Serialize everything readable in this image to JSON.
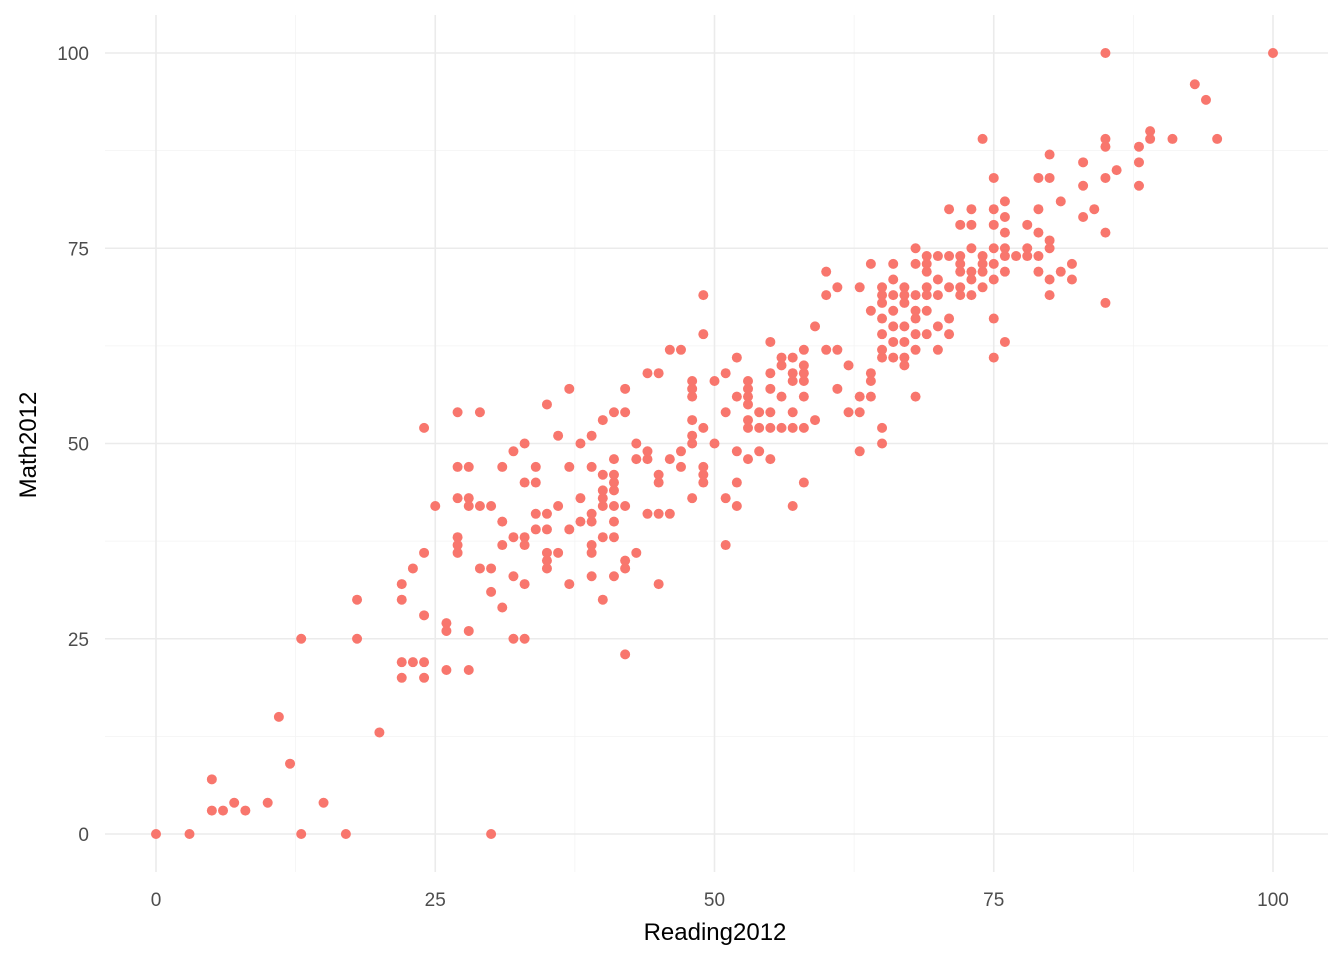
{
  "chart_data": {
    "type": "scatter",
    "title": "",
    "xlabel": "Reading2012",
    "ylabel": "Math2012",
    "xlim": [
      0,
      100
    ],
    "ylim": [
      0,
      100
    ],
    "x_ticks": [
      0,
      25,
      50,
      75,
      100
    ],
    "y_ticks": [
      0,
      25,
      50,
      75,
      100
    ],
    "x_tick_labels": [
      "0",
      "25",
      "50",
      "75",
      "100"
    ],
    "y_tick_labels": [
      "0",
      "25",
      "50",
      "75",
      "100"
    ],
    "grid": true,
    "legend": "none",
    "point_color": "#F8766D",
    "points": [
      [
        0,
        0
      ],
      [
        3,
        0
      ],
      [
        5,
        3
      ],
      [
        5,
        7
      ],
      [
        6,
        3
      ],
      [
        7,
        4
      ],
      [
        8,
        3
      ],
      [
        10,
        4
      ],
      [
        11,
        15
      ],
      [
        12,
        9
      ],
      [
        13,
        0
      ],
      [
        13,
        25
      ],
      [
        15,
        4
      ],
      [
        17,
        0
      ],
      [
        18,
        25
      ],
      [
        18,
        30
      ],
      [
        20,
        13
      ],
      [
        22,
        20
      ],
      [
        22,
        22
      ],
      [
        22,
        30
      ],
      [
        22,
        32
      ],
      [
        23,
        22
      ],
      [
        23,
        34
      ],
      [
        24,
        20
      ],
      [
        24,
        22
      ],
      [
        24,
        28
      ],
      [
        24,
        36
      ],
      [
        24,
        52
      ],
      [
        25,
        42
      ],
      [
        26,
        26
      ],
      [
        26,
        27
      ],
      [
        26,
        21
      ],
      [
        27,
        36
      ],
      [
        27,
        37
      ],
      [
        27,
        38
      ],
      [
        27,
        43
      ],
      [
        27,
        47
      ],
      [
        27,
        54
      ],
      [
        28,
        21
      ],
      [
        28,
        26
      ],
      [
        28,
        42
      ],
      [
        28,
        43
      ],
      [
        28,
        47
      ],
      [
        29,
        34
      ],
      [
        29,
        42
      ],
      [
        29,
        54
      ],
      [
        30,
        0
      ],
      [
        30,
        31
      ],
      [
        30,
        34
      ],
      [
        30,
        42
      ],
      [
        31,
        29
      ],
      [
        31,
        37
      ],
      [
        31,
        40
      ],
      [
        31,
        47
      ],
      [
        32,
        25
      ],
      [
        32,
        33
      ],
      [
        32,
        38
      ],
      [
        32,
        49
      ],
      [
        33,
        25
      ],
      [
        33,
        32
      ],
      [
        33,
        37
      ],
      [
        33,
        38
      ],
      [
        33,
        45
      ],
      [
        33,
        50
      ],
      [
        34,
        39
      ],
      [
        34,
        41
      ],
      [
        34,
        45
      ],
      [
        34,
        47
      ],
      [
        35,
        34
      ],
      [
        35,
        35
      ],
      [
        35,
        36
      ],
      [
        35,
        39
      ],
      [
        35,
        41
      ],
      [
        35,
        55
      ],
      [
        36,
        36
      ],
      [
        36,
        42
      ],
      [
        36,
        51
      ],
      [
        37,
        32
      ],
      [
        37,
        39
      ],
      [
        37,
        47
      ],
      [
        37,
        57
      ],
      [
        38,
        40
      ],
      [
        38,
        43
      ],
      [
        38,
        50
      ],
      [
        39,
        33
      ],
      [
        39,
        36
      ],
      [
        39,
        37
      ],
      [
        39,
        40
      ],
      [
        39,
        41
      ],
      [
        39,
        47
      ],
      [
        39,
        51
      ],
      [
        40,
        30
      ],
      [
        40,
        38
      ],
      [
        40,
        42
      ],
      [
        40,
        43
      ],
      [
        40,
        44
      ],
      [
        40,
        46
      ],
      [
        40,
        53
      ],
      [
        41,
        33
      ],
      [
        41,
        38
      ],
      [
        41,
        40
      ],
      [
        41,
        42
      ],
      [
        41,
        44
      ],
      [
        41,
        45
      ],
      [
        41,
        46
      ],
      [
        41,
        48
      ],
      [
        41,
        54
      ],
      [
        42,
        23
      ],
      [
        42,
        34
      ],
      [
        42,
        35
      ],
      [
        42,
        42
      ],
      [
        42,
        54
      ],
      [
        42,
        57
      ],
      [
        43,
        36
      ],
      [
        43,
        48
      ],
      [
        43,
        50
      ],
      [
        44,
        41
      ],
      [
        44,
        48
      ],
      [
        44,
        49
      ],
      [
        44,
        59
      ],
      [
        45,
        32
      ],
      [
        45,
        41
      ],
      [
        45,
        45
      ],
      [
        45,
        46
      ],
      [
        45,
        59
      ],
      [
        46,
        41
      ],
      [
        46,
        48
      ],
      [
        46,
        62
      ],
      [
        47,
        47
      ],
      [
        47,
        49
      ],
      [
        47,
        62
      ],
      [
        48,
        43
      ],
      [
        48,
        50
      ],
      [
        48,
        51
      ],
      [
        48,
        53
      ],
      [
        48,
        56
      ],
      [
        48,
        57
      ],
      [
        48,
        58
      ],
      [
        49,
        45
      ],
      [
        49,
        46
      ],
      [
        49,
        47
      ],
      [
        49,
        52
      ],
      [
        49,
        64
      ],
      [
        49,
        69
      ],
      [
        50,
        50
      ],
      [
        50,
        58
      ],
      [
        51,
        37
      ],
      [
        51,
        43
      ],
      [
        51,
        54
      ],
      [
        51,
        59
      ],
      [
        52,
        42
      ],
      [
        52,
        45
      ],
      [
        52,
        49
      ],
      [
        52,
        56
      ],
      [
        52,
        61
      ],
      [
        53,
        48
      ],
      [
        53,
        52
      ],
      [
        53,
        53
      ],
      [
        53,
        55
      ],
      [
        53,
        56
      ],
      [
        53,
        57
      ],
      [
        53,
        58
      ],
      [
        54,
        49
      ],
      [
        54,
        52
      ],
      [
        54,
        54
      ],
      [
        55,
        48
      ],
      [
        55,
        52
      ],
      [
        55,
        54
      ],
      [
        55,
        57
      ],
      [
        55,
        59
      ],
      [
        55,
        63
      ],
      [
        56,
        52
      ],
      [
        56,
        56
      ],
      [
        56,
        60
      ],
      [
        56,
        61
      ],
      [
        57,
        42
      ],
      [
        57,
        52
      ],
      [
        57,
        54
      ],
      [
        57,
        58
      ],
      [
        57,
        59
      ],
      [
        57,
        61
      ],
      [
        58,
        45
      ],
      [
        58,
        52
      ],
      [
        58,
        56
      ],
      [
        58,
        58
      ],
      [
        58,
        59
      ],
      [
        58,
        60
      ],
      [
        58,
        62
      ],
      [
        59,
        53
      ],
      [
        59,
        65
      ],
      [
        60,
        62
      ],
      [
        60,
        69
      ],
      [
        60,
        72
      ],
      [
        61,
        57
      ],
      [
        61,
        62
      ],
      [
        61,
        70
      ],
      [
        62,
        54
      ],
      [
        62,
        60
      ],
      [
        63,
        49
      ],
      [
        63,
        54
      ],
      [
        63,
        56
      ],
      [
        63,
        70
      ],
      [
        64,
        56
      ],
      [
        64,
        58
      ],
      [
        64,
        59
      ],
      [
        64,
        67
      ],
      [
        64,
        73
      ],
      [
        65,
        50
      ],
      [
        65,
        52
      ],
      [
        65,
        61
      ],
      [
        65,
        62
      ],
      [
        65,
        64
      ],
      [
        65,
        66
      ],
      [
        65,
        68
      ],
      [
        65,
        69
      ],
      [
        65,
        70
      ],
      [
        66,
        61
      ],
      [
        66,
        63
      ],
      [
        66,
        65
      ],
      [
        66,
        67
      ],
      [
        66,
        69
      ],
      [
        66,
        71
      ],
      [
        66,
        73
      ],
      [
        67,
        60
      ],
      [
        67,
        61
      ],
      [
        67,
        63
      ],
      [
        67,
        65
      ],
      [
        67,
        68
      ],
      [
        67,
        69
      ],
      [
        67,
        70
      ],
      [
        68,
        56
      ],
      [
        68,
        62
      ],
      [
        68,
        64
      ],
      [
        68,
        66
      ],
      [
        68,
        67
      ],
      [
        68,
        69
      ],
      [
        68,
        73
      ],
      [
        68,
        75
      ],
      [
        69,
        64
      ],
      [
        69,
        67
      ],
      [
        69,
        69
      ],
      [
        69,
        70
      ],
      [
        69,
        72
      ],
      [
        69,
        73
      ],
      [
        69,
        74
      ],
      [
        70,
        62
      ],
      [
        70,
        65
      ],
      [
        70,
        69
      ],
      [
        70,
        71
      ],
      [
        70,
        74
      ],
      [
        71,
        64
      ],
      [
        71,
        66
      ],
      [
        71,
        70
      ],
      [
        71,
        74
      ],
      [
        71,
        80
      ],
      [
        72,
        69
      ],
      [
        72,
        70
      ],
      [
        72,
        72
      ],
      [
        72,
        73
      ],
      [
        72,
        74
      ],
      [
        72,
        78
      ],
      [
        73,
        69
      ],
      [
        73,
        71
      ],
      [
        73,
        72
      ],
      [
        73,
        75
      ],
      [
        73,
        78
      ],
      [
        73,
        80
      ],
      [
        74,
        70
      ],
      [
        74,
        72
      ],
      [
        74,
        73
      ],
      [
        74,
        74
      ],
      [
        74,
        89
      ],
      [
        75,
        61
      ],
      [
        75,
        66
      ],
      [
        75,
        71
      ],
      [
        75,
        73
      ],
      [
        75,
        75
      ],
      [
        75,
        78
      ],
      [
        75,
        80
      ],
      [
        75,
        84
      ],
      [
        76,
        63
      ],
      [
        76,
        72
      ],
      [
        76,
        74
      ],
      [
        76,
        75
      ],
      [
        76,
        77
      ],
      [
        76,
        79
      ],
      [
        76,
        81
      ],
      [
        77,
        74
      ],
      [
        78,
        74
      ],
      [
        78,
        75
      ],
      [
        78,
        78
      ],
      [
        79,
        72
      ],
      [
        79,
        74
      ],
      [
        79,
        77
      ],
      [
        79,
        80
      ],
      [
        79,
        84
      ],
      [
        80,
        69
      ],
      [
        80,
        71
      ],
      [
        80,
        75
      ],
      [
        80,
        76
      ],
      [
        80,
        84
      ],
      [
        80,
        87
      ],
      [
        81,
        72
      ],
      [
        81,
        81
      ],
      [
        82,
        71
      ],
      [
        82,
        73
      ],
      [
        83,
        79
      ],
      [
        83,
        83
      ],
      [
        83,
        86
      ],
      [
        84,
        80
      ],
      [
        85,
        68
      ],
      [
        85,
        77
      ],
      [
        85,
        84
      ],
      [
        85,
        88
      ],
      [
        85,
        89
      ],
      [
        85,
        100
      ],
      [
        86,
        85
      ],
      [
        88,
        83
      ],
      [
        88,
        86
      ],
      [
        88,
        88
      ],
      [
        89,
        89
      ],
      [
        89,
        90
      ],
      [
        91,
        89
      ],
      [
        93,
        96
      ],
      [
        94,
        94
      ],
      [
        95,
        89
      ],
      [
        100,
        100
      ]
    ]
  }
}
